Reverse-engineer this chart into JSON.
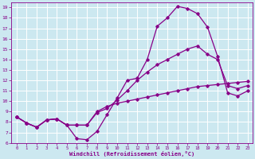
{
  "title": "",
  "xlabel": "Windchill (Refroidissement éolien,°C)",
  "background_color": "#cce8f0",
  "grid_color": "#ffffff",
  "line_color": "#880088",
  "spine_color": "#550055",
  "xlim": [
    -0.5,
    23.5
  ],
  "ylim": [
    6,
    19.5
  ],
  "xticks": [
    0,
    1,
    2,
    3,
    4,
    5,
    6,
    7,
    8,
    9,
    10,
    11,
    12,
    13,
    14,
    15,
    16,
    17,
    18,
    19,
    20,
    21,
    22,
    23
  ],
  "yticks": [
    6,
    7,
    8,
    9,
    10,
    11,
    12,
    13,
    14,
    15,
    16,
    17,
    18,
    19
  ],
  "curve1_x": [
    0,
    1,
    2,
    3,
    4,
    5,
    6,
    7,
    8,
    9,
    10,
    11,
    12,
    13,
    14,
    15,
    16,
    17,
    18,
    19,
    20,
    21,
    22,
    23
  ],
  "curve1_y": [
    8.5,
    7.9,
    7.5,
    8.2,
    8.3,
    7.7,
    6.4,
    6.3,
    7.1,
    8.7,
    10.3,
    12.0,
    12.2,
    14.0,
    17.2,
    18.0,
    19.1,
    18.9,
    18.4,
    17.1,
    14.3,
    10.8,
    10.5,
    11.0
  ],
  "curve2_x": [
    0,
    1,
    2,
    3,
    4,
    5,
    6,
    7,
    8,
    9,
    10,
    11,
    12,
    13,
    14,
    15,
    16,
    17,
    18,
    19,
    20,
    21,
    22,
    23
  ],
  "curve2_y": [
    8.5,
    7.9,
    7.5,
    8.2,
    8.3,
    7.7,
    7.7,
    7.7,
    8.9,
    9.3,
    10.1,
    11.0,
    12.0,
    12.8,
    13.5,
    14.0,
    14.5,
    15.0,
    15.3,
    14.5,
    14.0,
    11.5,
    11.2,
    11.5
  ],
  "curve3_x": [
    0,
    1,
    2,
    3,
    4,
    5,
    6,
    7,
    8,
    9,
    10,
    11,
    12,
    13,
    14,
    15,
    16,
    17,
    18,
    19,
    20,
    21,
    22,
    23
  ],
  "curve3_y": [
    8.5,
    7.9,
    7.5,
    8.2,
    8.3,
    7.7,
    7.7,
    7.7,
    9.0,
    9.5,
    9.8,
    10.0,
    10.2,
    10.4,
    10.6,
    10.8,
    11.0,
    11.2,
    11.4,
    11.5,
    11.6,
    11.7,
    11.8,
    11.9
  ]
}
